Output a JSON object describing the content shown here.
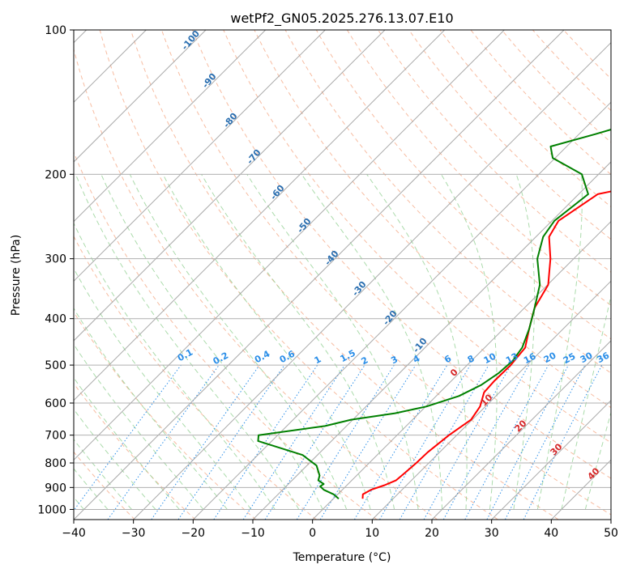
{
  "chart_data": {
    "type": "line",
    "title": "wetPf2_GN05.2025.276.13.07.E10",
    "xlabel": "Temperature (°C)",
    "ylabel": "Pressure (hPa)",
    "xlim": [
      -40,
      50
    ],
    "ylim": [
      1050,
      100
    ],
    "x_ticks": [
      "−40",
      "−30",
      "−20",
      "−10",
      "0",
      "10",
      "20",
      "30",
      "40",
      "50"
    ],
    "y_ticks": [
      "1000",
      "900",
      "800",
      "700",
      "600",
      "500",
      "400",
      "300",
      "200",
      "100"
    ],
    "grid": true,
    "colors": {
      "temperature": "#ff0000",
      "dewpoint": "#008000",
      "isotherm": "#a0a0a0",
      "dry_adiabat": "#f4a582",
      "moist_adiabat": "#8fcf8f",
      "mixing_ratio": "#2a8ee8",
      "dry_label": "#2b6fb0",
      "moist_label": "#d62728"
    },
    "mixing_ratio_labels": [
      "0.1",
      "0.2",
      "0.4",
      "0.6",
      "1",
      "1.5",
      "2",
      "3",
      "4",
      "6",
      "8",
      "10",
      "13",
      "16",
      "20",
      "25",
      "30",
      "36"
    ],
    "dry_adiabat_labels": [
      "-100",
      "-90",
      "-80",
      "-70",
      "-60",
      "-50",
      "-40",
      "-30",
      "-20",
      "-10"
    ],
    "moist_adiabat_labels": [
      "0",
      "10",
      "20",
      "30",
      "40"
    ],
    "series": [
      {
        "name": "Temperature",
        "points": [
          [
            4.9,
            950
          ],
          [
            4.2,
            930
          ],
          [
            4.8,
            910
          ],
          [
            6.3,
            890
          ],
          [
            7.4,
            870
          ],
          [
            7.6,
            845
          ],
          [
            7.9,
            800
          ],
          [
            8.0,
            760
          ],
          [
            8.7,
            700
          ],
          [
            9.8,
            650
          ],
          [
            9.1,
            610
          ],
          [
            7.4,
            570
          ],
          [
            7.2,
            540
          ],
          [
            7.3,
            500
          ],
          [
            6.8,
            460
          ],
          [
            4.3,
            420
          ],
          [
            1.7,
            380
          ],
          [
            0.1,
            340
          ],
          [
            -3.9,
            300
          ],
          [
            -7.8,
            270
          ],
          [
            -8.9,
            250
          ],
          [
            -6.8,
            220
          ],
          [
            2.6,
            205
          ],
          [
            17.7,
            185
          ],
          [
            20.3,
            170
          ],
          [
            21.4,
            160
          ],
          [
            23.6,
            150
          ],
          [
            26.5,
            140
          ],
          [
            30.2,
            130
          ],
          [
            34.1,
            120
          ],
          [
            38.6,
            110
          ],
          [
            42.6,
            101
          ]
        ]
      },
      {
        "name": "Dewpoint",
        "points": [
          [
            0.9,
            950
          ],
          [
            -0.7,
            930
          ],
          [
            -3.1,
            910
          ],
          [
            -4.3,
            895
          ],
          [
            -4.1,
            885
          ],
          [
            -5.6,
            870
          ],
          [
            -6.2,
            850
          ],
          [
            -8.4,
            810
          ],
          [
            -12.5,
            770
          ],
          [
            -22.3,
            720
          ],
          [
            -23.2,
            700
          ],
          [
            -13.6,
            670
          ],
          [
            -10.3,
            650
          ],
          [
            -4.0,
            630
          ],
          [
            0.1,
            610
          ],
          [
            3.8,
            580
          ],
          [
            5.7,
            550
          ],
          [
            6.6,
            520
          ],
          [
            6.9,
            490
          ],
          [
            6.3,
            460
          ],
          [
            4.3,
            420
          ],
          [
            1.7,
            380
          ],
          [
            -1.3,
            340
          ],
          [
            -6.1,
            300
          ],
          [
            -8.8,
            270
          ],
          [
            -9.6,
            250
          ],
          [
            -8.4,
            220
          ],
          [
            -12.8,
            200
          ],
          [
            -20.4,
            185
          ],
          [
            -22.7,
            175
          ],
          [
            -17.3,
            165
          ],
          [
            -12.1,
            155
          ],
          [
            -11.2,
            145
          ],
          [
            -16.1,
            137
          ],
          [
            -19.3,
            130
          ],
          [
            -19.1,
            125
          ],
          [
            -16.2,
            120
          ],
          [
            -13.2,
            115
          ],
          [
            -12.0,
            108
          ],
          [
            -12.1,
            100
          ]
        ]
      }
    ]
  }
}
